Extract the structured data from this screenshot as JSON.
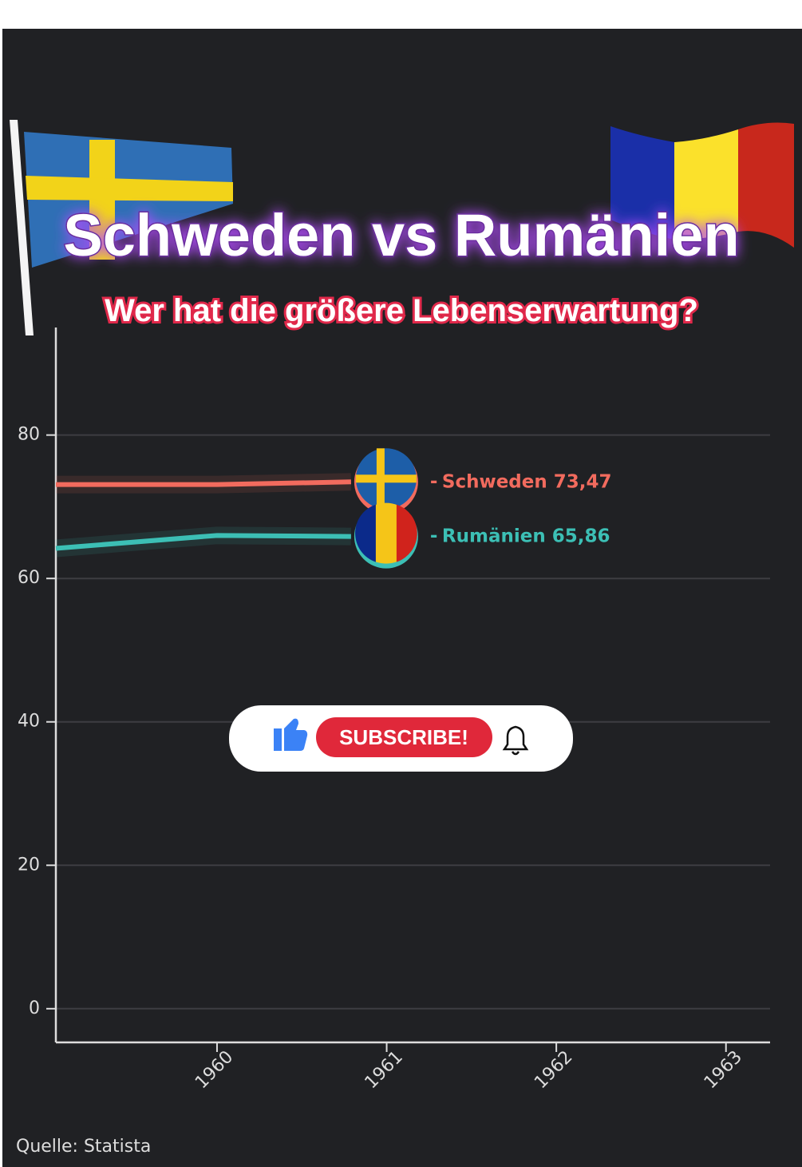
{
  "chart_data": {
    "type": "line",
    "title": "Schweden vs Rumänien",
    "subtitle": "Wer hat die größere Lebenserwartung?",
    "source": "Quelle: Statista",
    "x": [
      1959.05,
      1960,
      1960.79
    ],
    "series": [
      {
        "name": "Schweden",
        "color": "#f26b5e",
        "values": [
          73.1,
          73.1,
          73.47
        ],
        "value_labels": [
          null,
          null,
          "73,47"
        ]
      },
      {
        "name": "Rumänien",
        "color": "#3cbfb5",
        "values": [
          64.2,
          66.0,
          65.86
        ],
        "value_labels": [
          null,
          null,
          "65,86"
        ]
      }
    ],
    "xlim": [
      1959.05,
      1963.26
    ],
    "xticks": [
      1960,
      1961,
      1962,
      1963
    ],
    "ylim": [
      -4.7,
      95
    ],
    "yticks": [
      0,
      20,
      40,
      60,
      80
    ],
    "grid": true
  },
  "overlay": {
    "subscribe": "SUBSCRIBE!"
  }
}
